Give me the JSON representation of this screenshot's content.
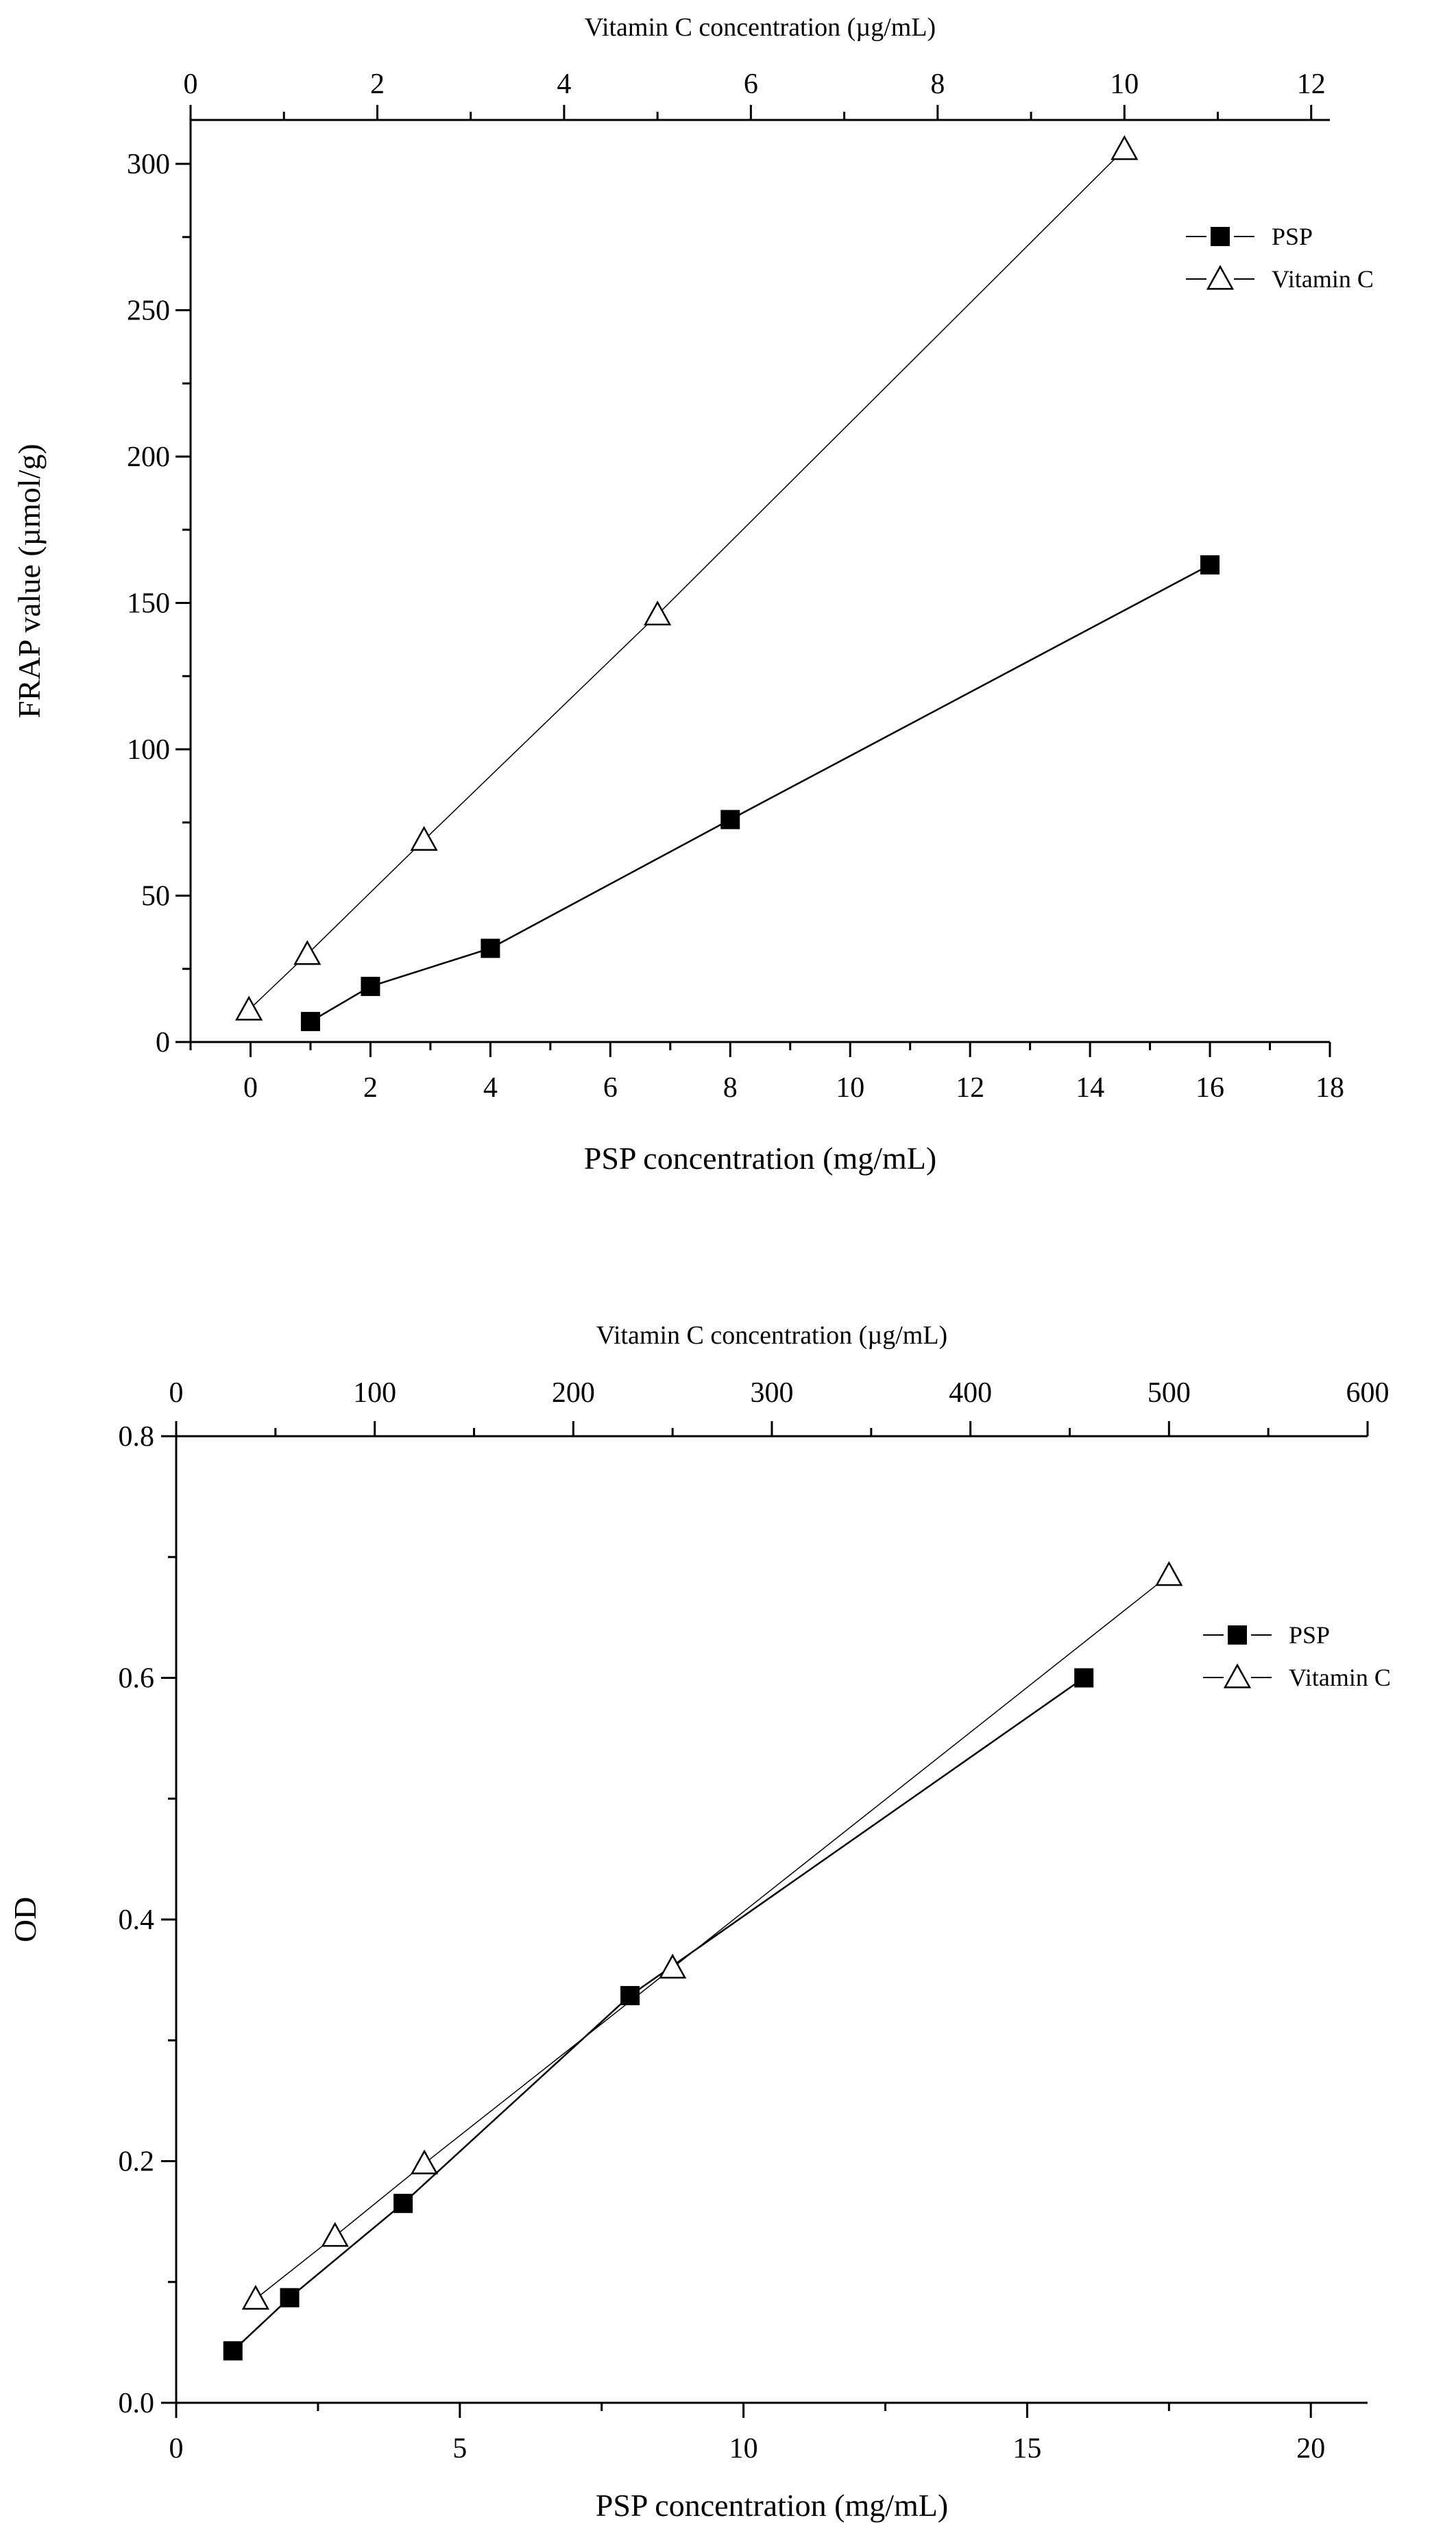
{
  "chart_data": [
    {
      "type": "line",
      "title": "",
      "xlabel": "PSP concentration (mg/mL)",
      "x2label": "Vitamin C concentration (µg/mL)",
      "ylabel": "FRAP value (µmol/g)",
      "xlim": [
        -1,
        18
      ],
      "x2lim": [
        0,
        12.2
      ],
      "ylim": [
        0,
        300
      ],
      "ydisplay_max": 315,
      "xticks": [
        0,
        2,
        4,
        6,
        8,
        10,
        12,
        14,
        16,
        18
      ],
      "x2ticks": [
        0,
        2,
        4,
        6,
        8,
        10,
        12
      ],
      "yticks": [
        0,
        50,
        100,
        150,
        200,
        250,
        300
      ],
      "legend_position": "top-right",
      "series": [
        {
          "name": "PSP",
          "axis": "bottom",
          "marker": "filled-square",
          "x": [
            1,
            2,
            4,
            8,
            16
          ],
          "y": [
            7,
            19,
            32,
            76,
            163
          ]
        },
        {
          "name": "Vitamin C",
          "axis": "top",
          "marker": "open-triangle",
          "x": [
            0.625,
            1.25,
            2.5,
            5,
            10
          ],
          "y": [
            11,
            30,
            69,
            146,
            305
          ]
        }
      ]
    },
    {
      "type": "line",
      "title": "",
      "xlabel": "PSP concentration (mg/mL)",
      "x2label": "Vitamin C concentration (µg/mL)",
      "ylabel": "OD",
      "xlim": [
        0,
        21
      ],
      "x2lim": [
        0,
        600
      ],
      "ylim": [
        0,
        0.8
      ],
      "ydisplay_max": 0.8,
      "xticks": [
        0,
        5,
        10,
        15,
        20
      ],
      "x2ticks": [
        0,
        100,
        200,
        300,
        400,
        500,
        600
      ],
      "yticks": [
        0.0,
        0.2,
        0.4,
        0.6,
        0.8
      ],
      "yticklabels": [
        "0.0",
        "0.2",
        "0.4",
        "0.6",
        "0.8"
      ],
      "legend_position": "top-right",
      "series": [
        {
          "name": "PSP",
          "axis": "bottom",
          "marker": "filled-square",
          "x": [
            1,
            2,
            4,
            8,
            16
          ],
          "y": [
            0.043,
            0.087,
            0.165,
            0.337,
            0.6
          ]
        },
        {
          "name": "Vitamin C",
          "axis": "top",
          "marker": "open-triangle",
          "x": [
            40,
            80,
            125,
            250,
            500
          ],
          "y": [
            0.086,
            0.138,
            0.198,
            0.36,
            0.685
          ]
        }
      ]
    }
  ]
}
